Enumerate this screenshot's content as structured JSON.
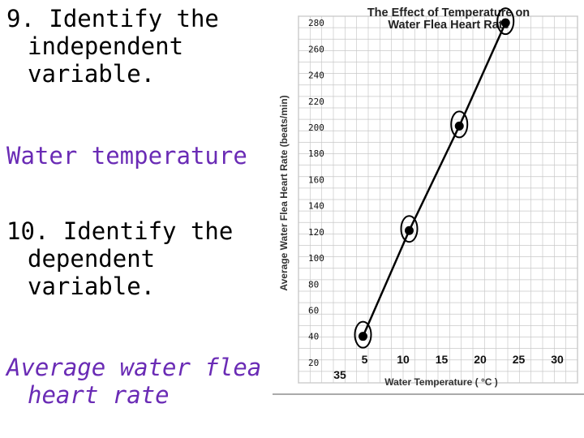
{
  "questions": {
    "q9": {
      "line1": "9. Identify the",
      "line2": "independent",
      "line3": "variable."
    },
    "a9": {
      "line1": "Water temperature"
    },
    "q10": {
      "line1": "10. Identify the",
      "line2": "dependent",
      "line3": "variable."
    },
    "a10": {
      "line1": "Average water flea",
      "line2": "heart rate"
    }
  },
  "colors": {
    "answer": "#6a2bb5",
    "text": "#000000",
    "grid": "#c8c8c8",
    "line": "#000000"
  },
  "chart_data": {
    "type": "line",
    "title": "The Effect of Temperature on",
    "subtitle": "Water Flea Heart Rate",
    "xlabel": "Water Temperature ( °C )",
    "ylabel": "Average Water Flea Heart Rate (beats/min)",
    "x_tick_labels": [
      "5",
      "10",
      "15",
      "20",
      "25",
      "30"
    ],
    "x_extra_label": "35",
    "y_tick_labels": [
      "20",
      "40",
      "60",
      "80",
      "100",
      "120",
      "140",
      "160",
      "180",
      "200",
      "220",
      "240",
      "260",
      "280"
    ],
    "xlim": [
      0,
      30
    ],
    "ylim": [
      10,
      290
    ],
    "grid": true,
    "series": [
      {
        "x": [
          5,
          11,
          17.5,
          23.5
        ],
        "y": [
          40,
          121,
          201,
          280
        ]
      }
    ],
    "circled_points": true
  }
}
